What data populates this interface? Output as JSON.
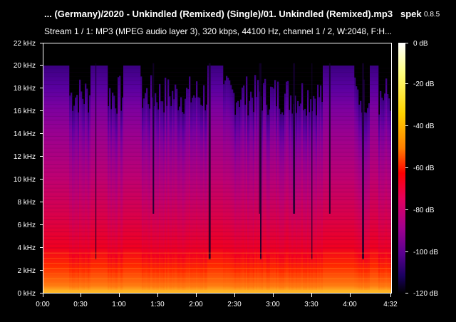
{
  "header": {
    "title": "... (Germany)/2020 - Unkindled (Remixed) (Single)/01. Unkindled (Remixed).mp3",
    "app_name": "spek",
    "app_version": "0.8.5",
    "stream_info": "Stream 1 / 1: MP3 (MPEG audio layer 3), 320 kbps, 44100 Hz, channel 1 / 2, W:2048, F:H..."
  },
  "frequency_axis": {
    "ticks": [
      "0 kHz",
      "2 kHz",
      "4 kHz",
      "6 kHz",
      "8 kHz",
      "10 kHz",
      "12 kHz",
      "14 kHz",
      "16 kHz",
      "18 kHz",
      "20 kHz",
      "22 kHz"
    ]
  },
  "time_axis": {
    "ticks": [
      "0:00",
      "0:30",
      "1:00",
      "1:30",
      "2:00",
      "2:30",
      "3:00",
      "3:30",
      "4:00",
      "4:32"
    ]
  },
  "level_scale": {
    "ticks": [
      "0 dB",
      "-20 dB",
      "-40 dB",
      "-60 dB",
      "-80 dB",
      "-100 dB",
      "-120 dB"
    ],
    "colors": [
      "#ffffff",
      "#ffff80",
      "#ffd400",
      "#ff7f00",
      "#ff0000",
      "#e6005c",
      "#a00090",
      "#5a0090",
      "#1a0060",
      "#000000"
    ]
  },
  "spectrogram": {
    "duration_seconds": 272,
    "max_frequency_khz": 22,
    "full_band_segments_seconds": [
      [
        0,
        20
      ],
      [
        37,
        50
      ],
      [
        62,
        76
      ],
      [
        128,
        140
      ],
      [
        219,
        243
      ],
      [
        255,
        262
      ]
    ],
    "dark_gaps_seconds": [
      41,
      86,
      130,
      169,
      170,
      196,
      210,
      224,
      250
    ]
  }
}
